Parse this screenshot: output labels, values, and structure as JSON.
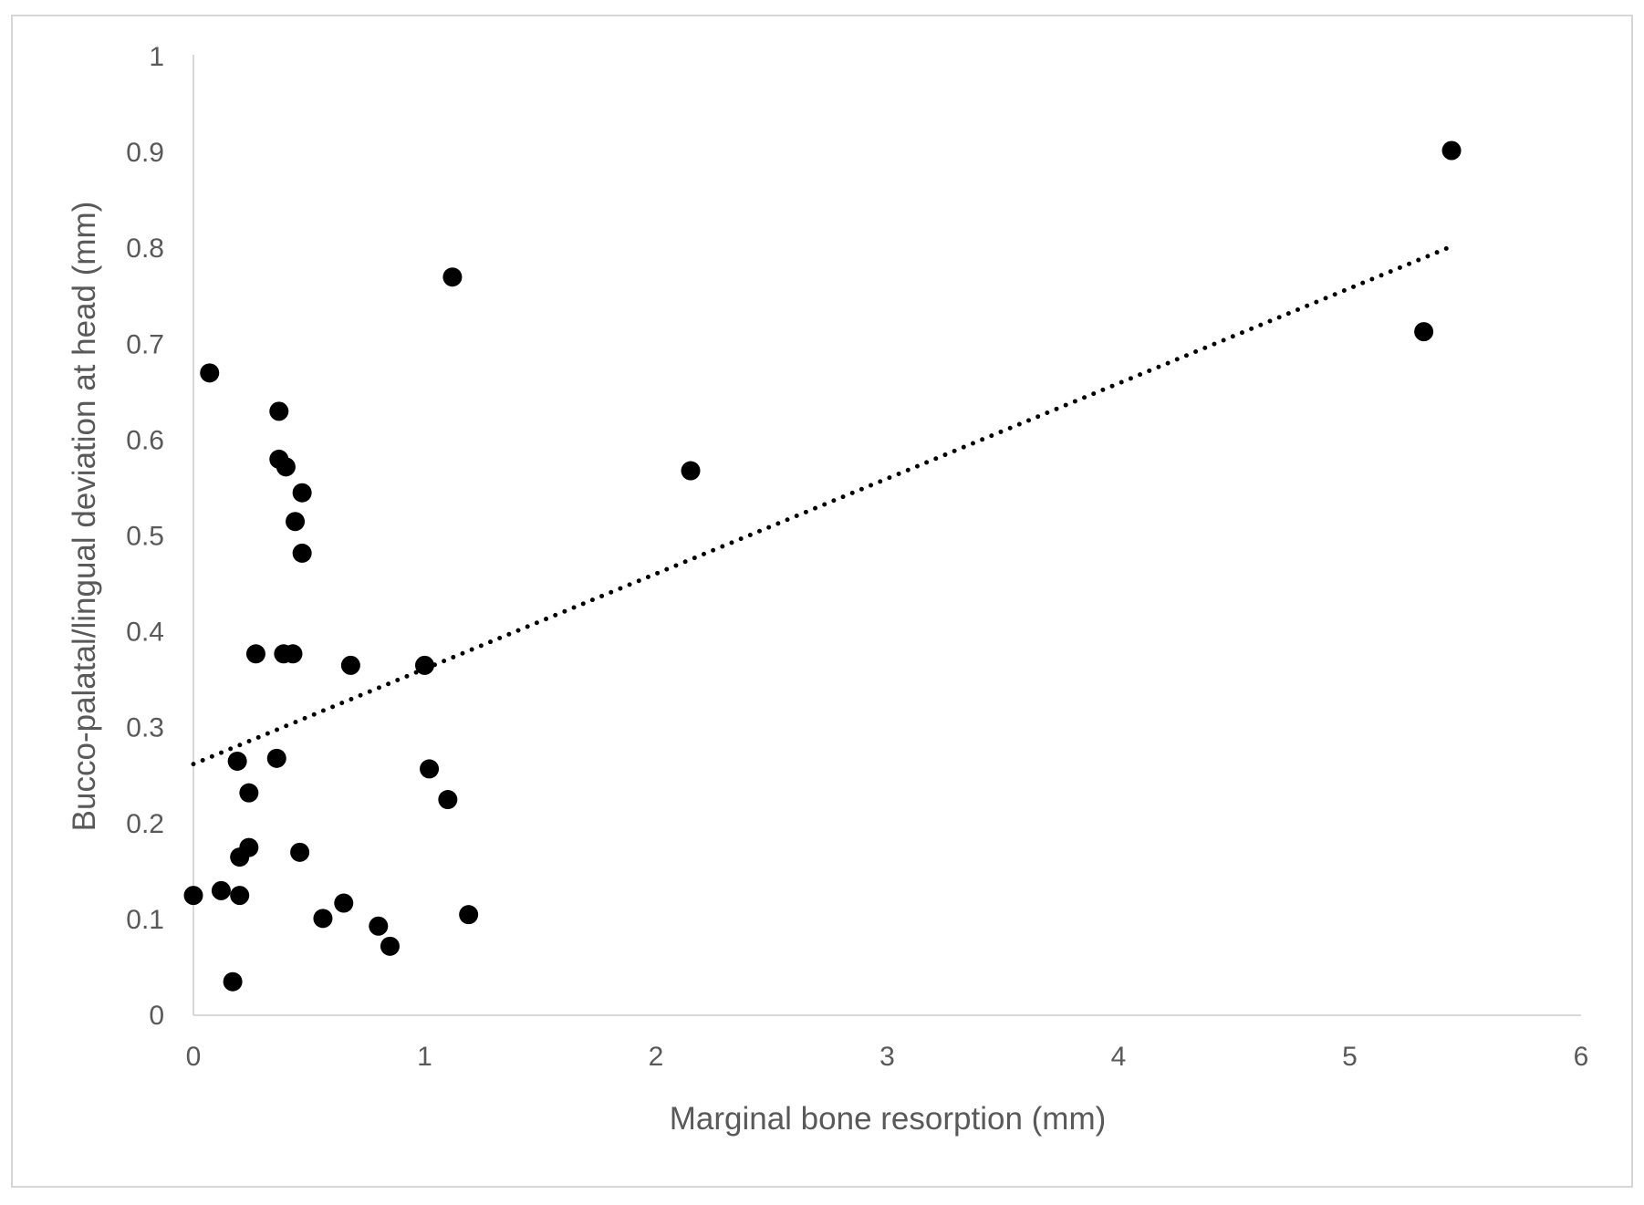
{
  "chart_data": {
    "type": "scatter",
    "title": "",
    "xlabel": "Marginal bone resorption  (mm)",
    "ylabel": "Bucco-palatal/lingual  deviation at head (mm)",
    "xlim": [
      0,
      6
    ],
    "ylim": [
      0,
      1
    ],
    "x_ticks": [
      "0",
      "1",
      "2",
      "3",
      "4",
      "5",
      "6"
    ],
    "y_ticks": [
      "0",
      "0.1",
      "0.2",
      "0.3",
      "0.4",
      "0.5",
      "0.6",
      "0.7",
      "0.8",
      "0.9",
      "1"
    ],
    "grid": false,
    "legend": "none",
    "colors": {
      "points": "#000000",
      "trendline": "#000000",
      "axis": "#d9d9d9",
      "text": "#595959"
    },
    "points": [
      [
        0.0,
        0.125
      ],
      [
        0.07,
        0.67
      ],
      [
        0.12,
        0.13
      ],
      [
        0.17,
        0.035
      ],
      [
        0.19,
        0.265
      ],
      [
        0.2,
        0.165
      ],
      [
        0.2,
        0.125
      ],
      [
        0.24,
        0.232
      ],
      [
        0.24,
        0.175
      ],
      [
        0.27,
        0.377
      ],
      [
        0.36,
        0.268
      ],
      [
        0.37,
        0.63
      ],
      [
        0.37,
        0.58
      ],
      [
        0.4,
        0.572
      ],
      [
        0.39,
        0.377
      ],
      [
        0.43,
        0.377
      ],
      [
        0.44,
        0.515
      ],
      [
        0.46,
        0.17
      ],
      [
        0.47,
        0.545
      ],
      [
        0.47,
        0.482
      ],
      [
        0.56,
        0.101
      ],
      [
        0.65,
        0.117
      ],
      [
        0.68,
        0.365
      ],
      [
        0.8,
        0.093
      ],
      [
        0.85,
        0.072
      ],
      [
        1.0,
        0.365
      ],
      [
        1.02,
        0.257
      ],
      [
        1.1,
        0.225
      ],
      [
        1.12,
        0.77
      ],
      [
        1.19,
        0.105
      ],
      [
        2.15,
        0.568
      ],
      [
        5.32,
        0.713
      ],
      [
        5.44,
        0.902
      ]
    ],
    "trendline": {
      "style": "dotted",
      "type": "linear",
      "x": [
        0,
        5.42
      ],
      "y": [
        0.262,
        0.8
      ]
    }
  }
}
